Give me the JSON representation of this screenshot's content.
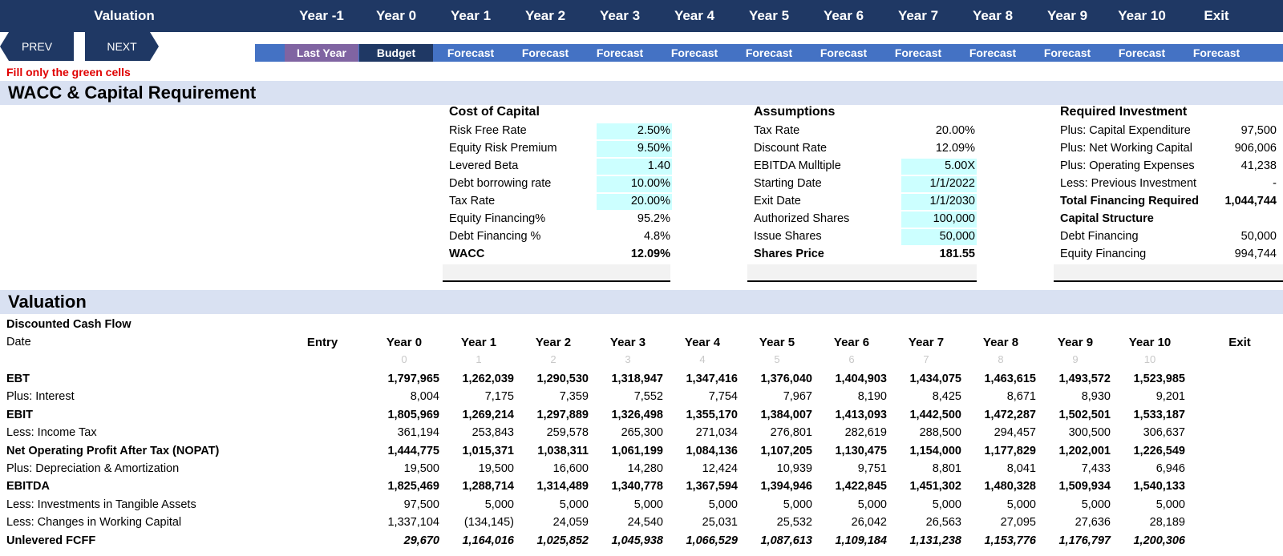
{
  "topnav": {
    "valuation": "Valuation",
    "years": [
      "Year -1",
      "Year 0",
      "Year 1",
      "Year 2",
      "Year 3",
      "Year 4",
      "Year 5",
      "Year 6",
      "Year 7",
      "Year 8",
      "Year 9",
      "Year 10",
      "Exit"
    ],
    "prev": "PREV",
    "next": "NEXT",
    "subs": [
      "Last Year",
      "Budget",
      "Forecast",
      "Forecast",
      "Forecast",
      "Forecast",
      "Forecast",
      "Forecast",
      "Forecast",
      "Forecast",
      "Forecast",
      "Forecast",
      "Forecast"
    ],
    "colors": {
      "navy": "#1f3864",
      "blue": "#4472c4",
      "lastyear": "#8064a2"
    }
  },
  "note": "Fill only the green cells",
  "wacc_section": {
    "title": "WACC & Capital Requirement",
    "cost_of_capital": {
      "title": "Cost of Capital",
      "rows": [
        {
          "label": "Risk Free Rate",
          "value": "2.50%"
        },
        {
          "label": "Equity Risk Premium",
          "value": "9.50%"
        },
        {
          "label": "Levered Beta",
          "value": "1.40"
        },
        {
          "label": "Debt borrowing rate",
          "value": "10.00%"
        },
        {
          "label": "Tax Rate",
          "value": "20.00%"
        },
        {
          "label": "Equity Financing%",
          "value": "95.2%"
        },
        {
          "label": "Debt Financing %",
          "value": "4.8%"
        },
        {
          "label": "WACC",
          "value": "12.09%"
        }
      ]
    },
    "assumptions": {
      "title": "Assumptions",
      "rows": [
        {
          "label": "Tax Rate",
          "value": "20.00%"
        },
        {
          "label": "Discount Rate",
          "value": "12.09%"
        },
        {
          "label": "EBITDA Mulltiple",
          "value": "5.00X"
        },
        {
          "label": "Starting Date",
          "value": "1/1/2022"
        },
        {
          "label": "Exit Date",
          "value": "1/1/2030"
        },
        {
          "label": "Authorized Shares",
          "value": "100,000"
        },
        {
          "label": "Issue Shares",
          "value": "50,000"
        },
        {
          "label": "Shares Price",
          "value": "181.55"
        }
      ]
    },
    "required_investment": {
      "title": "Required Investment",
      "rows": [
        {
          "label": "Plus: Capital Expenditure",
          "value": "97,500"
        },
        {
          "label": "Plus: Net Working Capital",
          "value": "906,006"
        },
        {
          "label": "Plus: Operating Expenses",
          "value": "41,238"
        },
        {
          "label": "Less: Previous Investment",
          "value": "-"
        },
        {
          "label": "Total Financing Required",
          "value": "1,044,744"
        },
        {
          "label": "Capital Structure",
          "value": ""
        },
        {
          "label": "Debt Financing",
          "value": "50,000"
        },
        {
          "label": "Equity Financing",
          "value": "994,744"
        }
      ]
    }
  },
  "valuation_section": {
    "title": "Valuation",
    "dcf_title": "Discounted Cash Flow",
    "date_label": "Date",
    "entry_label": "Entry",
    "year_headers": [
      "Year 0",
      "Year 1",
      "Year 2",
      "Year 3",
      "Year 4",
      "Year 5",
      "Year 6",
      "Year 7",
      "Year 8",
      "Year 9",
      "Year 10",
      "Exit"
    ],
    "year_index": [
      "0",
      "1",
      "2",
      "3",
      "4",
      "5",
      "6",
      "7",
      "8",
      "9",
      "10"
    ],
    "rows": [
      {
        "label": "EBT",
        "values": [
          "1,797,965",
          "1,262,039",
          "1,290,530",
          "1,318,947",
          "1,347,416",
          "1,376,040",
          "1,404,903",
          "1,434,075",
          "1,463,615",
          "1,493,572",
          "1,523,985"
        ]
      },
      {
        "label": "Plus: Interest",
        "values": [
          "8,004",
          "7,175",
          "7,359",
          "7,552",
          "7,754",
          "7,967",
          "8,190",
          "8,425",
          "8,671",
          "8,930",
          "9,201"
        ]
      },
      {
        "label": "EBIT",
        "values": [
          "1,805,969",
          "1,269,214",
          "1,297,889",
          "1,326,498",
          "1,355,170",
          "1,384,007",
          "1,413,093",
          "1,442,500",
          "1,472,287",
          "1,502,501",
          "1,533,187"
        ]
      },
      {
        "label": "Less: Income Tax",
        "values": [
          "361,194",
          "253,843",
          "259,578",
          "265,300",
          "271,034",
          "276,801",
          "282,619",
          "288,500",
          "294,457",
          "300,500",
          "306,637"
        ]
      },
      {
        "label": "Net Operating Profit After Tax (NOPAT)",
        "values": [
          "1,444,775",
          "1,015,371",
          "1,038,311",
          "1,061,199",
          "1,084,136",
          "1,107,205",
          "1,130,475",
          "1,154,000",
          "1,177,829",
          "1,202,001",
          "1,226,549"
        ]
      },
      {
        "label": "Plus: Depreciation & Amortization",
        "values": [
          "19,500",
          "19,500",
          "16,600",
          "14,280",
          "12,424",
          "10,939",
          "9,751",
          "8,801",
          "8,041",
          "7,433",
          "6,946"
        ]
      },
      {
        "label": "EBITDA",
        "values": [
          "1,825,469",
          "1,288,714",
          "1,314,489",
          "1,340,778",
          "1,367,594",
          "1,394,946",
          "1,422,845",
          "1,451,302",
          "1,480,328",
          "1,509,934",
          "1,540,133"
        ]
      },
      {
        "label": "Less: Investments in Tangible Assets",
        "values": [
          "97,500",
          "5,000",
          "5,000",
          "5,000",
          "5,000",
          "5,000",
          "5,000",
          "5,000",
          "5,000",
          "5,000",
          "5,000"
        ]
      },
      {
        "label": "Less: Changes in Working Capital",
        "values": [
          "1,337,104",
          "(134,145)",
          "24,059",
          "24,540",
          "25,031",
          "25,532",
          "26,042",
          "26,563",
          "27,095",
          "27,636",
          "28,189"
        ]
      },
      {
        "label": "Unlevered FCFF",
        "values": [
          "29,670",
          "1,164,016",
          "1,025,852",
          "1,045,938",
          "1,066,529",
          "1,087,613",
          "1,109,184",
          "1,131,238",
          "1,153,776",
          "1,176,797",
          "1,200,306"
        ]
      }
    ]
  }
}
